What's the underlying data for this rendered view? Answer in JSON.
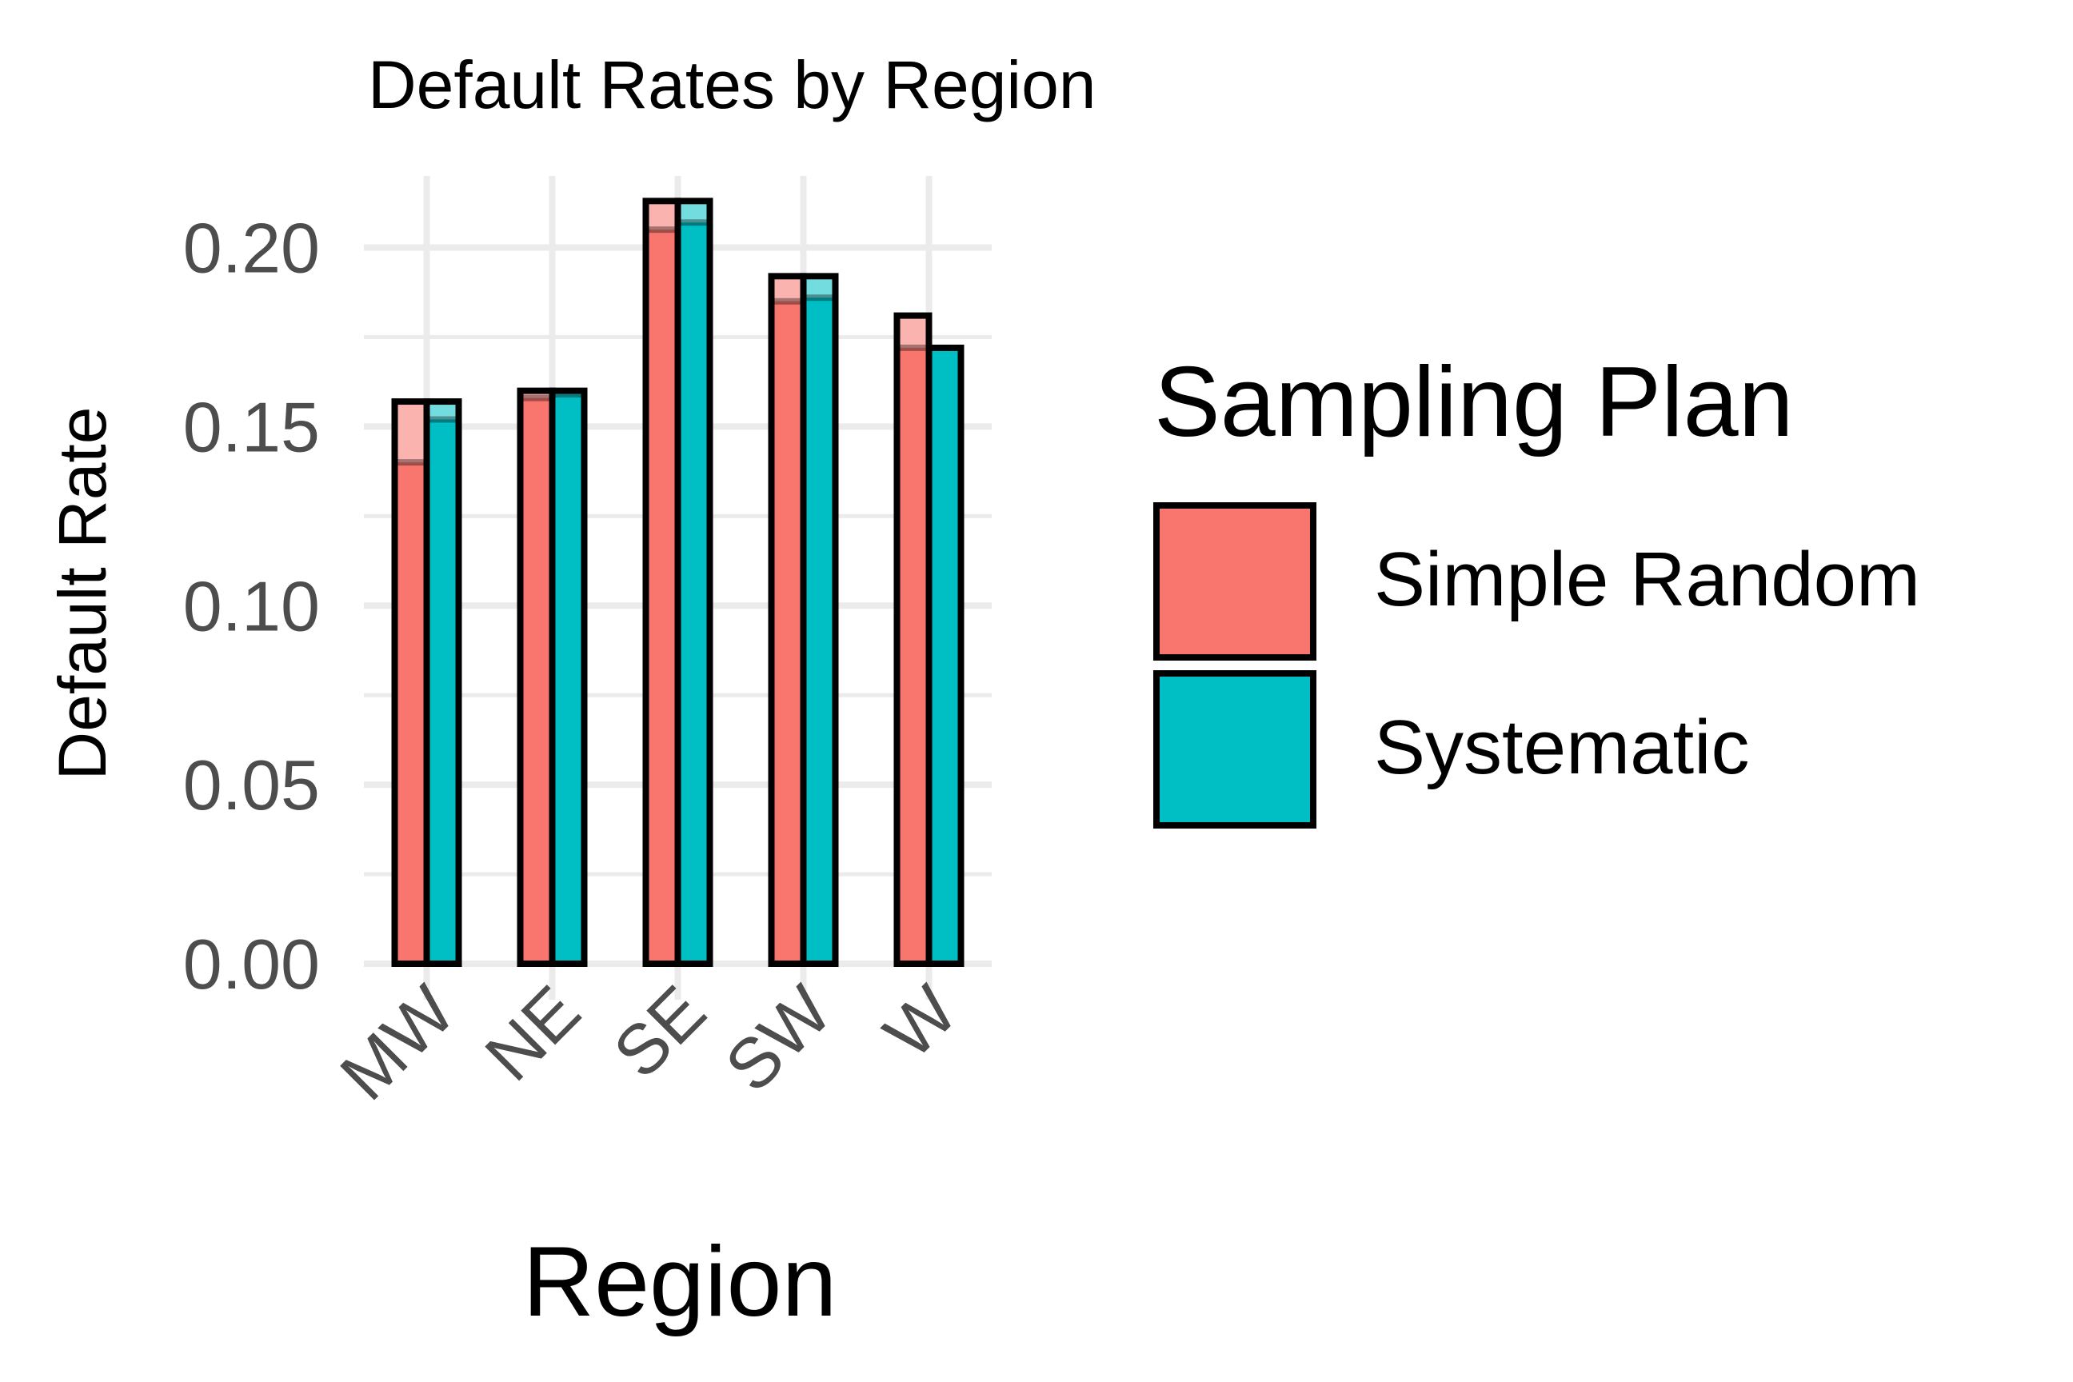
{
  "chart_data": {
    "type": "bar",
    "title": "Default Rates by Region",
    "xlabel": "Region",
    "ylabel": "Default Rate",
    "categories": [
      "MW",
      "NE",
      "SE",
      "SW",
      "W"
    ],
    "series": [
      {
        "name": "Simple Random",
        "color": "#F8766D",
        "values": [
          0.157,
          0.16,
          0.213,
          0.192,
          0.181
        ],
        "ci_low": [
          0.14,
          0.158,
          0.205,
          0.185,
          0.172
        ],
        "ci_high": [
          0.157,
          0.16,
          0.213,
          0.192,
          0.181
        ]
      },
      {
        "name": "Systematic",
        "color": "#00BFC4",
        "values": [
          0.157,
          0.16,
          0.213,
          0.192,
          0.172
        ],
        "ci_low": [
          0.152,
          0.159,
          0.207,
          0.186,
          0.172
        ],
        "ci_high": [
          0.157,
          0.16,
          0.213,
          0.192,
          0.172
        ]
      }
    ],
    "ylim": [
      0,
      0.22
    ],
    "yticks": [
      "0.00",
      "0.05",
      "0.10",
      "0.15",
      "0.20"
    ],
    "ytick_values": [
      0,
      0.05,
      0.1,
      0.15,
      0.2
    ],
    "grid": true,
    "legend": {
      "title": "Sampling Plan",
      "placement": "right",
      "entries": [
        "Simple Random",
        "Systematic"
      ]
    }
  }
}
